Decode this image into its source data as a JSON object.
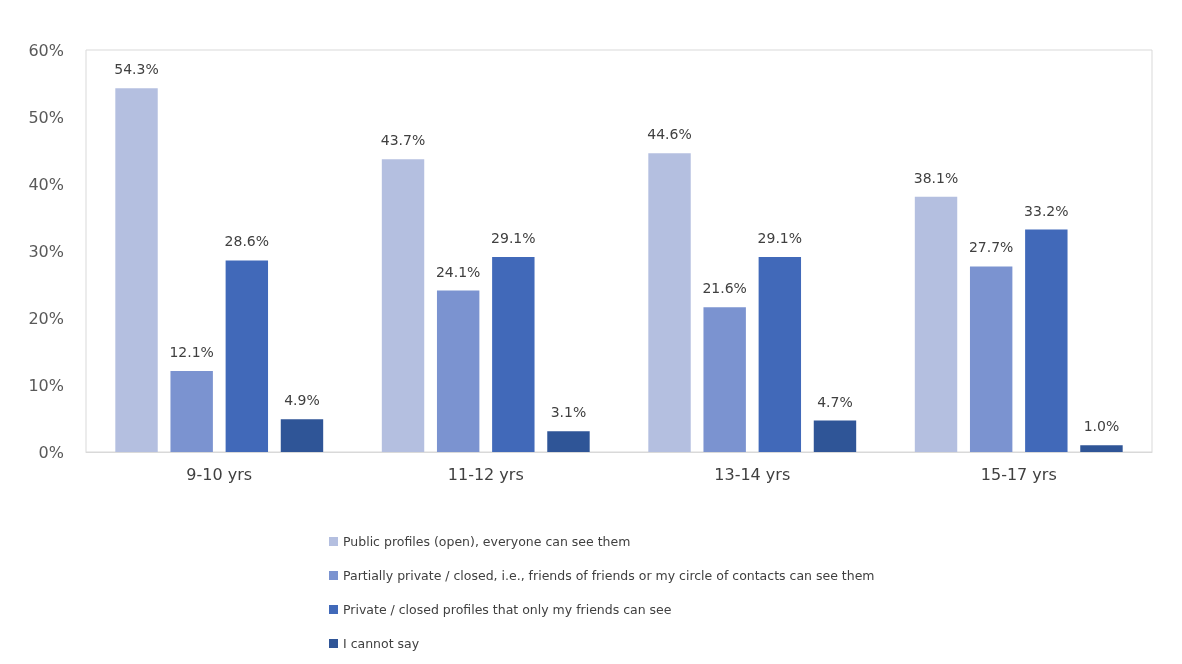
{
  "chart_data": {
    "type": "bar",
    "categories": [
      "9-10 yrs",
      "11-12 yrs",
      "13-14 yrs",
      "15-17 yrs"
    ],
    "series": [
      {
        "name": "Public profiles (open), everyone can see them",
        "color": "#b4bfe0",
        "values": [
          54.3,
          43.7,
          44.6,
          38.1
        ],
        "value_labels": [
          "54.3%",
          "43.7%",
          "44.6%",
          "38.1%"
        ]
      },
      {
        "name": "Partially private / closed, i.e., friends of friends or my circle of contacts can see them",
        "color": "#7b93d0",
        "values": [
          12.1,
          24.1,
          21.6,
          27.7
        ],
        "value_labels": [
          "12.1%",
          "24.1%",
          "21.6%",
          "27.7%"
        ]
      },
      {
        "name": "Private / closed profiles that only my friends can see",
        "color": "#4169b9",
        "values": [
          28.6,
          29.1,
          29.1,
          33.2
        ],
        "value_labels": [
          "28.6%",
          "29.1%",
          "29.1%",
          "33.2%"
        ]
      },
      {
        "name": "I cannot say",
        "color": "#2f5597",
        "values": [
          4.9,
          3.1,
          4.7,
          1.0
        ],
        "value_labels": [
          "4.9%",
          "3.1%",
          "4.7%",
          "1.0%"
        ]
      }
    ],
    "ylim": [
      0,
      60
    ],
    "yticks": [
      {
        "value": 0,
        "label": "0%"
      },
      {
        "value": 10,
        "label": "10%"
      },
      {
        "value": 20,
        "label": "20%"
      },
      {
        "value": 30,
        "label": "30%"
      },
      {
        "value": 40,
        "label": "40%"
      },
      {
        "value": 50,
        "label": "50%"
      },
      {
        "value": 60,
        "label": "60%"
      }
    ],
    "grid": false,
    "legend": "bottom"
  }
}
